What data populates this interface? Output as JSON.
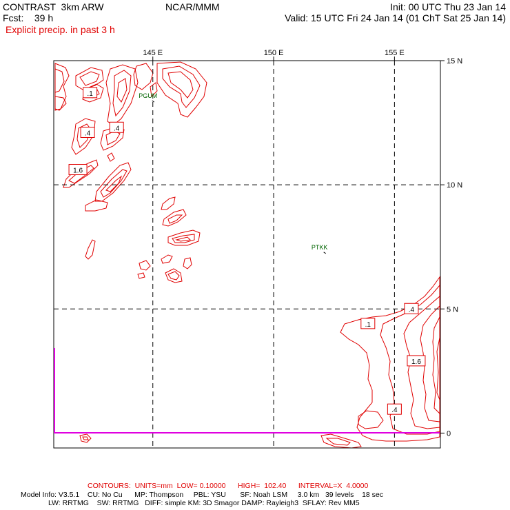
{
  "header": {
    "left1": "CONTRAST  3km ARW",
    "center1": "NCAR/MMM",
    "right1": "Init: 00 UTC Thu 23 Jan 14",
    "left2": "Fcst:    39 h",
    "right2": "Valid: 15 UTC Fri 24 Jan 14 (01 ChT Sat 25 Jan 14)",
    "subtitle": "Explicit precip. in past 3 h"
  },
  "colors": {
    "contour": "#e00000",
    "grid": "#000000",
    "boundary": "#e000e0",
    "station": "#006400"
  },
  "chart_data": {
    "type": "contour",
    "title": "Explicit precip. in past 3 h",
    "units": "mm",
    "x_ticks": [
      {
        "value": 145,
        "label": "145 E"
      },
      {
        "value": 150,
        "label": "150 E"
      },
      {
        "value": 155,
        "label": "155 E"
      }
    ],
    "y_ticks": [
      {
        "value": 15,
        "label": "15 N"
      },
      {
        "value": 10,
        "label": "10 N"
      },
      {
        "value": 5,
        "label": "5 N"
      },
      {
        "value": 0,
        "label": "0"
      }
    ],
    "xlim": [
      140.9,
      156.9
    ],
    "ylim": [
      -0.6,
      15.0
    ],
    "grid": true,
    "contour_labels": [
      {
        "text": ".1",
        "lon": 142.4,
        "lat": 13.7
      },
      {
        "text": ".4",
        "lon": 142.3,
        "lat": 12.1
      },
      {
        "text": ".4",
        "lon": 143.5,
        "lat": 12.3
      },
      {
        "text": "1.6",
        "lon": 141.9,
        "lat": 10.6
      },
      {
        "text": ".1",
        "lon": 153.9,
        "lat": 4.4
      },
      {
        "text": ".4",
        "lon": 155.7,
        "lat": 5.0
      },
      {
        "text": "1.6",
        "lon": 155.9,
        "lat": 2.9
      },
      {
        "text": ".4",
        "lon": 155.0,
        "lat": 0.95
      }
    ],
    "stations": [
      {
        "name": "PGUM",
        "lon": 144.8,
        "lat": 13.5
      },
      {
        "name": "PTKK",
        "lon": 151.9,
        "lat": 7.4
      }
    ]
  },
  "footer": {
    "contours": "CONTOURS:  UNITS=mm  LOW= 0.10000      HIGH=  102.40      INTERVAL=X  4.0000",
    "model1": "Model Info: V3.5.1    CU: No Cu      MP: Thompson     PBL: YSU       SF: Noah LSM     3.0 km   39 levels    18 sec",
    "model2": "LW: RRTMG    SW: RRTMG   DIFF: simple KM: 3D Smagor DAMP: Rayleigh3  SFLAY: Rev MM5"
  }
}
